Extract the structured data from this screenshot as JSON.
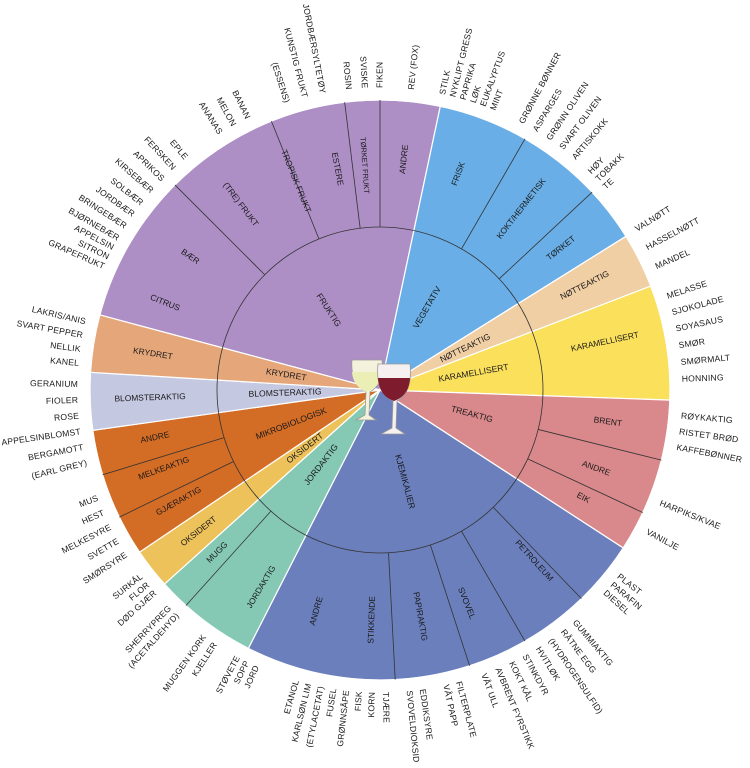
{
  "wheel": {
    "colors": {
      "fruktig": "#ad8fc6",
      "vegetativ": "#69aee6",
      "notteaktig": "#f1cfa4",
      "karamellisert": "#fbe05c",
      "treaktig": "#d9888b",
      "kjemikalier": "#6b7fbd",
      "jordaktig": "#85c9b4",
      "oksidert": "#edc25b",
      "mikrobiologisk": "#d36c25",
      "blomsteraktig": "#c5c8e1",
      "krydret": "#e5a77a"
    },
    "inner": [
      {
        "key": "fruktig",
        "label": "FRUKTIG"
      },
      {
        "key": "vegetativ",
        "label": "VEGETATIV"
      },
      {
        "key": "notteaktig",
        "label": "NØTTEAKTIG"
      },
      {
        "key": "karamellisert",
        "label": "KARAMELLISERT"
      },
      {
        "key": "treaktig",
        "label": "TREAKTIG"
      },
      {
        "key": "kjemikalier",
        "label": "KJEMIKALIER"
      },
      {
        "key": "jordaktig",
        "label": "JORDAKTIG"
      },
      {
        "key": "oksidert",
        "label": "OKSIDERT"
      },
      {
        "key": "mikrobiologisk",
        "label": "MIKROBIOLOGISK"
      },
      {
        "key": "blomsteraktig",
        "label": "BLOMSTERAKTIG"
      },
      {
        "key": "krydret",
        "label": "KRYDRET"
      }
    ],
    "middle": {
      "fruktig": [
        "CITRUS",
        "BÆR",
        "(TRE) FRUKT",
        "TROPISK FRUKT",
        "ESTERE",
        "TØRKET FRUKT",
        "ANDRE"
      ],
      "vegetativ": [
        "FRISK",
        "KOKT/HERMETISK",
        "TØRKET"
      ],
      "notteaktig": [
        "NØTTEAKTIG"
      ],
      "karamellisert": [
        "KARAMELLISERT"
      ],
      "treaktig": [
        "BRENT",
        "ANDRE",
        "EIK"
      ],
      "kjemikalier": [
        "PETROLEUM",
        "SVOVEL",
        "PAPIRAKTIG",
        "STIKKENDE",
        "ANDRE"
      ],
      "jordaktig": [
        "JORDAKTIG",
        "MUGG"
      ],
      "oksidert": [
        "OKSIDERT"
      ],
      "mikrobiologisk": [
        "GJÆRAKTIG",
        "MELKEAKTIG",
        "ANDRE"
      ],
      "blomsteraktig": [
        "BLOMSTERAKTIG"
      ],
      "krydret": [
        "KRYDRET"
      ]
    },
    "outer": {
      "citrus": [
        "GRAPEFRUKT",
        "SITRON",
        "APPELSIN"
      ],
      "baer": [
        "BJØRNEBÆR",
        "BRINGEBÆR",
        "JORDBÆR",
        "SOLBÆR"
      ],
      "trefrukt": [
        "KIRSEBÆR",
        "APRIKOS",
        "FERSKEN",
        "EPLE"
      ],
      "tropisk": [
        "ANANAS",
        "MELON",
        "BANAN"
      ],
      "estere": [
        "(ESSENS)",
        "KUNSTIG FRUKT",
        "JORDBÆRSYLTETØY"
      ],
      "torket_frukt": [
        "ROSIN",
        "SVISKE",
        "FIKEN"
      ],
      "fruktig_andre": [
        "REV (FOX)"
      ],
      "frisk": [
        "STILK",
        "NYKLIPT GRESS",
        "PAPRIKA",
        "LØK",
        "EUKALYPTUS",
        "MINT"
      ],
      "kokt": [
        "GRØNNE BØNNER",
        "ASPARGES",
        "GRØNN OLIVEN",
        "SVART OLIVEN",
        "ARTISKOKK"
      ],
      "torket_veg": [
        "HØY",
        "TOBAKK",
        "TE"
      ],
      "notter": [
        "VALNØTT",
        "HASSELNØTT",
        "MANDEL"
      ],
      "karamell": [
        "MELASSE",
        "SJOKOLADE",
        "SOYASAUS",
        "SMØR",
        "SMØRMALT",
        "HONNING"
      ],
      "brent": [
        "RØYKAKTIG",
        "RISTET BRØD",
        "KAFFEBØNNER"
      ],
      "tre_andre": [
        "HARPIKS/KVAE"
      ],
      "eik": [
        "VANILJE"
      ],
      "petroleum": [
        "PLAST",
        "PARAFIN",
        "DIESEL"
      ],
      "svovel": [
        "GUMMIAKTIG",
        "RÅTNE EGG",
        "(HYDROGENSULFID)",
        "HVITLØK",
        "STINKDYR",
        "KOKT KÅL",
        "AVBRENT FYRSTIKK",
        "VÅT ULL"
      ],
      "papiraktig": [
        "FILTERPLATE",
        "VÅT PAPP"
      ],
      "stikkende": [
        "EDDIKSYRE",
        "SVOVELDIOKSID"
      ],
      "kjem_andre": [
        "TJÆRE",
        "KORN",
        "FISK",
        "GRØNNSÅPE",
        "FUSEL",
        "(ETYLACETAT)",
        "KARLSØN LIM",
        "ETANOL"
      ],
      "jord": [
        "JORD",
        "SOPP",
        "STØVETE"
      ],
      "mugg": [
        "KJELLER",
        "MUGGEN KORK"
      ],
      "oksidert": [
        "(ACETALDEHYD)",
        "SHERRYPREG"
      ],
      "gjaer": [
        "DØD GJÆR",
        "FLOR",
        "SURKÅL"
      ],
      "melk": [
        "SMØRSYRE",
        "SVETTE",
        "MELKESYRE"
      ],
      "mikro_andre": [
        "HEST",
        "MUS"
      ],
      "blomster": [
        "(EARL GREY)",
        "BERGAMOTT",
        "APPELSINBLOMST",
        "ROSE",
        "FIOLER",
        "GERANIUM"
      ],
      "krydder": [
        "KANEL",
        "NELLIK",
        "SVART PEPPER",
        "LAKRIS/ANIS"
      ]
    }
  }
}
